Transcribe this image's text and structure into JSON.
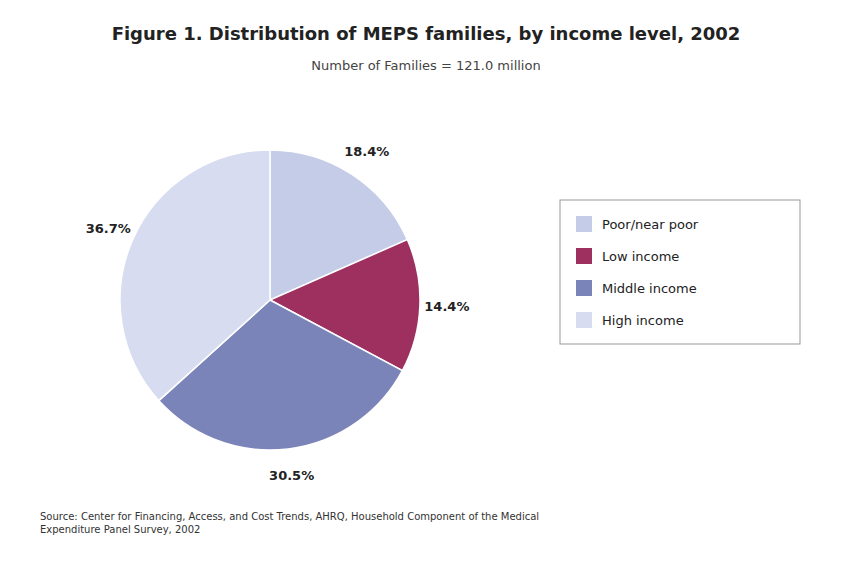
{
  "chart_data": {
    "type": "pie",
    "title": "Figure 1. Distribution of MEPS families, by income level, 2002",
    "subtitle": "Number of Families = 121.0 million",
    "categories": [
      "Poor/near poor",
      "Low income",
      "Middle income",
      "High income"
    ],
    "values": [
      18.4,
      14.4,
      30.5,
      36.7
    ],
    "value_labels": [
      "18.4%",
      "14.4%",
      "30.5%",
      "36.7%"
    ],
    "colors": [
      "#c5cce8",
      "#9e3060",
      "#7b84b8",
      "#d8dcf0"
    ],
    "data_labels": true,
    "legend": "right",
    "annotations": [
      "Source: Center for Financing, Access, and Cost Trends, AHRQ, Household Component of the Medical\nExpenditure Panel Survey, 2002"
    ]
  }
}
